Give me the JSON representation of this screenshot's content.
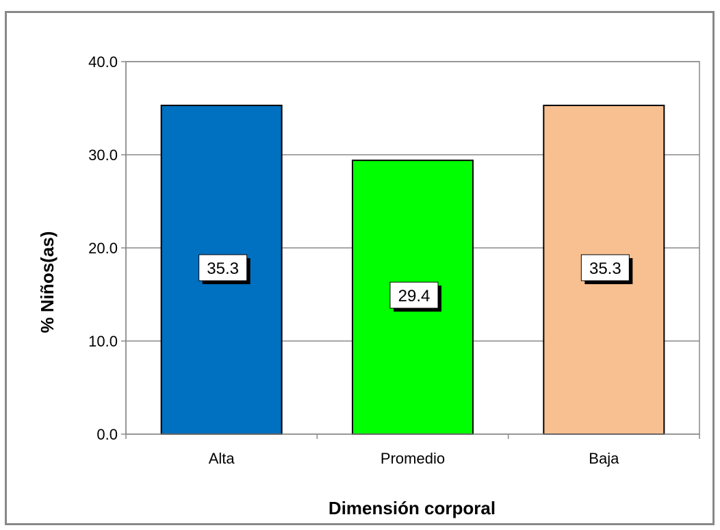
{
  "chart_data": {
    "type": "bar",
    "categories": [
      "Alta",
      "Promedio",
      "Baja"
    ],
    "values": [
      35.3,
      29.4,
      35.3
    ],
    "data_labels": [
      "35.3",
      "29.4",
      "35.3"
    ],
    "colors": [
      "#0070C0",
      "#00FF00",
      "#F8C090"
    ],
    "xlabel": "Dimensión corporal",
    "ylabel": "% Niños(as)",
    "ylim": [
      0,
      40
    ],
    "yticks": [
      "0.0",
      "10.0",
      "20.0",
      "30.0",
      "40.0"
    ],
    "grid": true,
    "legend": false
  }
}
